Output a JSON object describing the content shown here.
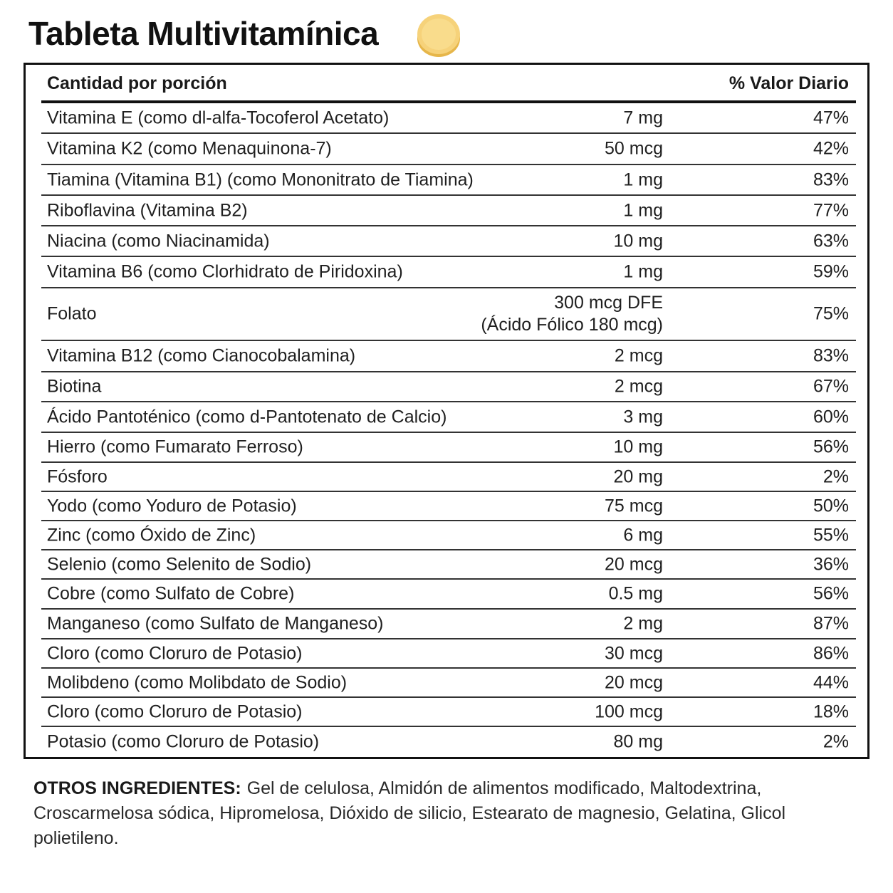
{
  "title": "Tableta Multivitamínica",
  "colors": {
    "tablet_fill": "#f6d27a",
    "tablet_edge": "#e6b64a",
    "border": "#111111"
  },
  "header": {
    "amount_label": "Cantidad por porción",
    "dv_label": "% Valor Diario"
  },
  "rows": [
    {
      "name": "Vitamina E (como dl-alfa-Tocoferol Acetato)",
      "amount": "7 mg",
      "dv": "47%"
    },
    {
      "name": "Vitamina K2 (como Menaquinona-7)",
      "amount": "50 mcg",
      "dv": "42%"
    },
    {
      "name": "Tiamina (Vitamina B1) (como Mononitrato de Tiamina)",
      "amount": "1 mg",
      "dv": "83%"
    },
    {
      "name": "Riboflavina (Vitamina B2)",
      "amount": "1 mg",
      "dv": "77%"
    },
    {
      "name": "Niacina (como Niacinamida)",
      "amount": "10 mg",
      "dv": "63%"
    },
    {
      "name": "Vitamina B6 (como Clorhidrato de Piridoxina)",
      "amount": "1 mg",
      "dv": "59%"
    },
    {
      "name": "Folato",
      "amount": "300 mcg DFE",
      "amount2": "(Ácido Fólico 180 mcg)",
      "dv": "75%"
    },
    {
      "name": "Vitamina B12 (como Cianocobalamina)",
      "amount": "2 mcg",
      "dv": "83%"
    },
    {
      "name": "Biotina",
      "amount": "2 mcg",
      "dv": "67%"
    },
    {
      "name": "Ácido Pantoténico (como d-Pantotenato de Calcio)",
      "amount": "3 mg",
      "dv": "60%"
    },
    {
      "name": "Hierro (como Fumarato Ferroso)",
      "amount": "10 mg",
      "dv": "56%"
    },
    {
      "name": "Fósforo",
      "amount": "20 mg",
      "dv": "2%"
    },
    {
      "name": "Yodo (como Yoduro de Potasio)",
      "amount": "75 mcg",
      "dv": "50%"
    },
    {
      "name": "Zinc (como Óxido de Zinc)",
      "amount": "6 mg",
      "dv": "55%"
    },
    {
      "name": "Selenio (como Selenito de Sodio)",
      "amount": "20 mcg",
      "dv": "36%"
    },
    {
      "name": "Cobre (como Sulfato de Cobre)",
      "amount": "0.5 mg",
      "dv": "56%"
    },
    {
      "name": "Manganeso (como Sulfato de Manganeso)",
      "amount": "2 mg",
      "dv": "87%"
    },
    {
      "name": "Cloro (como Cloruro de Potasio)",
      "amount": "30 mcg",
      "dv": "86%"
    },
    {
      "name": "Molibdeno (como Molibdato de Sodio)",
      "amount": "20 mcg",
      "dv": "44%"
    },
    {
      "name": "Cloro (como Cloruro de Potasio)",
      "amount": "100 mcg",
      "dv": "18%"
    },
    {
      "name": "Potasio (como Cloruro de Potasio)",
      "amount": "80 mg",
      "dv": "2%"
    }
  ],
  "other_ingredients": {
    "label": "OTROS INGREDIENTES:",
    "text": "Gel de celulosa, Almidón de alimentos modificado, Maltodextrina, Croscarmelosa sódica, Hipromelosa, Dióxido de silicio, Estearato de magnesio, Gelatina, Glicol polietileno."
  }
}
